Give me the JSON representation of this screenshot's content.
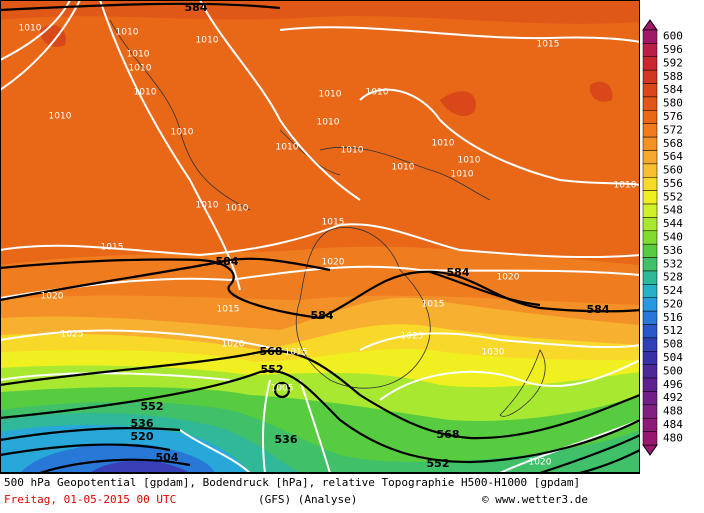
{
  "map": {
    "scale": {
      "labels": [
        600,
        596,
        592,
        588,
        584,
        580,
        576,
        572,
        568,
        564,
        560,
        556,
        552,
        548,
        544,
        540,
        536,
        532,
        528,
        524,
        520,
        516,
        512,
        508,
        504,
        500,
        496,
        492,
        488,
        484,
        480
      ],
      "colors": [
        "#a01868",
        "#b82048",
        "#c82830",
        "#d03820",
        "#d84818",
        "#e05818",
        "#e86818",
        "#f07c20",
        "#f49028",
        "#f8a830",
        "#f8c030",
        "#f8d828",
        "#f0f020",
        "#d0f028",
        "#a8e830",
        "#80dc30",
        "#58cc40",
        "#40c068",
        "#30b898",
        "#28b0c8",
        "#2898e0",
        "#2878d8",
        "#2858c8",
        "#3040b8",
        "#3830a8",
        "#4c2898",
        "#602090",
        "#702088",
        "#802080",
        "#8c1c78",
        "#981870"
      ]
    },
    "contour_labels": [
      "584",
      "1010",
      "1010",
      "1010",
      "1010",
      "1010",
      "1010",
      "1015",
      "1010",
      "1010",
      "1010",
      "1010",
      "1010",
      "1010",
      "1010",
      "1010",
      "1010",
      "1010",
      "1010",
      "1010",
      "1010",
      "1010",
      "1015",
      "1015",
      "584",
      "1020",
      "584",
      "1020",
      "1020",
      "1015",
      "584",
      "1015",
      "584",
      "1025",
      "1025",
      "1020",
      "568",
      "1015",
      "1030",
      "552",
      "1005",
      "552",
      "536",
      "520",
      "536",
      "568",
      "504",
      "552",
      "1020"
    ],
    "footer": {
      "line1": "500 hPa Geopotential [gpdam], Bodendruck [hPa], relative Topographie H500-H1000 [gpdam]",
      "date": "Freitag, 01-05-2015  00 UTC",
      "model": "(GFS)  (Analyse)",
      "credit": "© www.wetter3.de"
    }
  }
}
